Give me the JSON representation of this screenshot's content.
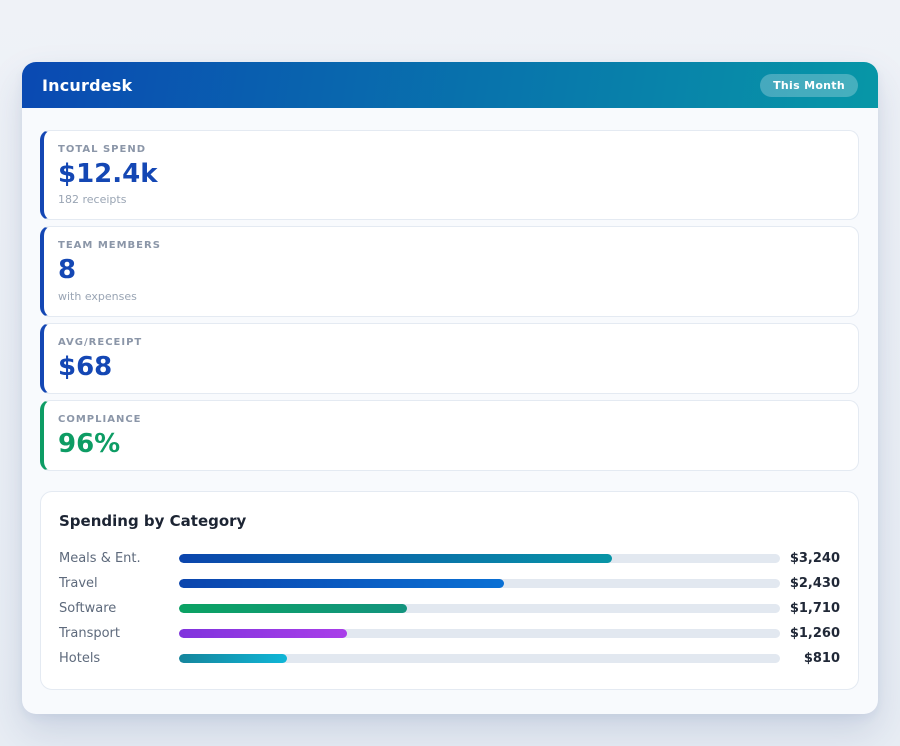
{
  "header": {
    "title": "Incurdesk",
    "badge": "This Month",
    "gradient_from": "#0a49b2",
    "gradient_to": "#0797a7"
  },
  "stats": [
    {
      "label": "TOTAL SPEND",
      "value": "$12.4k",
      "sub": "182 receipts",
      "accent": "#1447b4"
    },
    {
      "label": "TEAM MEMBERS",
      "value": "8",
      "sub": "with expenses",
      "accent": "#1447b4"
    },
    {
      "label": "AVG/RECEIPT",
      "value": "$68",
      "accent": "#1447b4"
    },
    {
      "label": "COMPLIANCE",
      "value": "96%",
      "accent": "#0d9c64"
    }
  ],
  "chart": {
    "title": "Spending by Category",
    "scale_max": 4500,
    "track_color": "#e2e8f0",
    "rows": [
      {
        "label": "Meals & Ent.",
        "value": 3240,
        "value_label": "$3,240",
        "pct": 72,
        "from": "#0b45ad",
        "to": "#0895a6"
      },
      {
        "label": "Travel",
        "value": 2430,
        "value_label": "$2,430",
        "pct": 54,
        "from": "#0b45ad",
        "to": "#0a70d4"
      },
      {
        "label": "Software",
        "value": 1710,
        "value_label": "$1,710",
        "pct": 38,
        "from": "#0ba263",
        "to": "#13947e"
      },
      {
        "label": "Transport",
        "value": 1260,
        "value_label": "$1,260",
        "pct": 28,
        "from": "#8033dd",
        "to": "#a93ee9"
      },
      {
        "label": "Hotels",
        "value": 810,
        "value_label": "$810",
        "pct": 18,
        "from": "#15859c",
        "to": "#10b6d7"
      }
    ]
  },
  "chart_data": {
    "type": "bar",
    "orientation": "horizontal",
    "title": "Spending by Category",
    "categories": [
      "Meals & Ent.",
      "Travel",
      "Software",
      "Transport",
      "Hotels"
    ],
    "values": [
      3240,
      2430,
      1710,
      1260,
      810
    ],
    "value_labels": [
      "$3,240",
      "$2,430",
      "$1,710",
      "$1,260",
      "$810"
    ],
    "xlabel": "",
    "ylabel": "",
    "xlim": [
      0,
      4500
    ],
    "grid": false,
    "legend": false
  }
}
